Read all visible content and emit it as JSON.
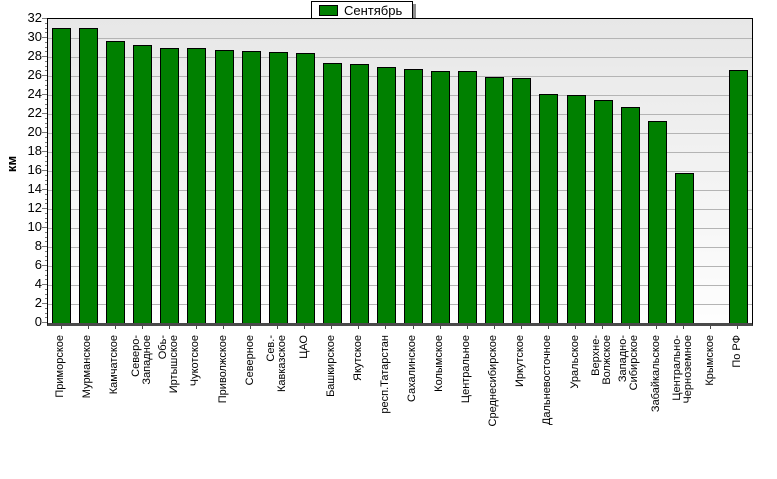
{
  "chart_data": {
    "type": "bar",
    "title": "",
    "legend": [
      "Сентябрь"
    ],
    "legend_position": "top-center",
    "ylabel": "км",
    "ylim": [
      0,
      32
    ],
    "ytick_step": 2,
    "grid": true,
    "bar_color": "#008000",
    "gridline_color": "#b4b4b4",
    "plot_bg_top": "#e7e7e7",
    "plot_bg_bottom": "#fefefe",
    "categories": [
      "Приморское",
      "Мурманское",
      "Камчатское",
      "Северо-Западное",
      "Обь-Иртышское",
      "Чукотское",
      "Приволжское",
      "Северное",
      "Сев.-Кавказское",
      "ЦАО",
      "Башкирское",
      "Якутское",
      "респ.Татарстан",
      "Сахалинское",
      "Колымское",
      "Центральное",
      "Среднесибирское",
      "Иркутское",
      "Дальневосточное",
      "Уральское",
      "Верхне-Волжское",
      "Западно-Сибирское",
      "Забайкальское",
      "Центрально-Черноземное",
      "Крымское",
      "По РФ"
    ],
    "label_lines": [
      [
        "Приморское"
      ],
      [
        "Мурманское"
      ],
      [
        "Камчатское"
      ],
      [
        "Северо-",
        "Западное"
      ],
      [
        "Обь-",
        "Иртышское"
      ],
      [
        "Чукотское"
      ],
      [
        "Приволжское"
      ],
      [
        "Северное"
      ],
      [
        "Сев.-",
        "Кавказское"
      ],
      [
        "ЦАО"
      ],
      [
        "Башкирское"
      ],
      [
        "Якутское"
      ],
      [
        "респ.Татарстан"
      ],
      [
        "Сахалинское"
      ],
      [
        "Колымское"
      ],
      [
        "Центральное"
      ],
      [
        "Среднесибирское"
      ],
      [
        "Иркутское"
      ],
      [
        "Дальневосточное"
      ],
      [
        "Уральское"
      ],
      [
        "Верхне-",
        "Волжское"
      ],
      [
        "Западно-",
        "Сибирское"
      ],
      [
        "Забайкальское"
      ],
      [
        "Центрально-",
        "Черноземное"
      ],
      [
        "Крымское"
      ],
      [
        "По РФ"
      ]
    ],
    "values": [
      31.1,
      31.1,
      29.7,
      29.3,
      29.0,
      28.9,
      28.7,
      28.6,
      28.5,
      28.4,
      27.4,
      27.3,
      27.0,
      26.7,
      26.5,
      26.5,
      25.9,
      25.8,
      24.1,
      24.0,
      23.5,
      22.7,
      21.3,
      15.8,
      null,
      26.6
    ]
  }
}
